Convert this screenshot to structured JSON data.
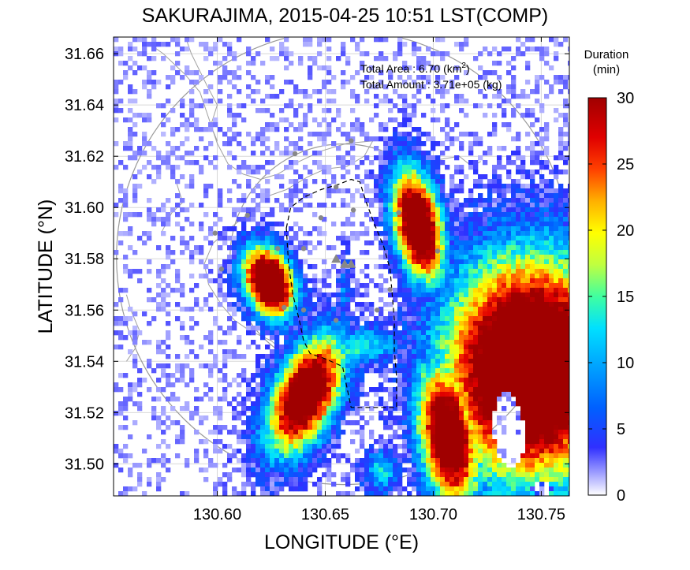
{
  "chart_data": {
    "type": "heatmap",
    "title": "SAKURAJIMA, 2015-04-25 10:51 LST(COMP)",
    "xlabel": "LONGITUDE (°E)",
    "ylabel": "LATITUDE (°N)",
    "xlim": [
      130.552,
      130.763
    ],
    "ylim": [
      31.4875,
      31.6665
    ],
    "x_ticks": [
      "130.60",
      "130.65",
      "130.70",
      "130.75"
    ],
    "x_tick_values": [
      130.6,
      130.65,
      130.7,
      130.75
    ],
    "y_ticks": [
      "31.66",
      "31.64",
      "31.62",
      "31.60",
      "31.58",
      "31.56",
      "31.54",
      "31.52",
      "31.50"
    ],
    "y_tick_values": [
      31.66,
      31.64,
      31.62,
      31.6,
      31.58,
      31.56,
      31.54,
      31.52,
      31.5
    ],
    "grid": true,
    "annotations": {
      "area_label": "Total Area  : 6.70 (km",
      "area_sup": "2",
      "area_close": ")",
      "amount_label": "Total Amount : 3.71e+05 (kg)"
    },
    "colorbar": {
      "title_line1": "Duration",
      "title_line2": "(min)",
      "min": 0,
      "max": 30,
      "ticks": [
        "30",
        "25",
        "20",
        "15",
        "10",
        "5",
        "0"
      ],
      "tick_values": [
        30,
        25,
        20,
        15,
        10,
        5,
        0
      ],
      "colors": [
        "#ffffff",
        "#1010ff",
        "#0090ff",
        "#00e0ff",
        "#40ff80",
        "#f0ff00",
        "#ffb000",
        "#ff3000",
        "#c00000",
        "#a00000"
      ]
    },
    "regions": [
      {
        "name": "west blob",
        "center": [
          130.625,
          31.57
        ],
        "max_duration": 30
      },
      {
        "name": "north-east blob",
        "center": [
          130.695,
          31.595
        ],
        "max_duration": 30
      },
      {
        "name": "south-west blob",
        "center": [
          130.64,
          31.525
        ],
        "max_duration": 30
      },
      {
        "name": "east plume",
        "center": [
          130.73,
          31.525
        ],
        "max_duration": 30
      }
    ],
    "vent_marker_color": "#888888"
  }
}
